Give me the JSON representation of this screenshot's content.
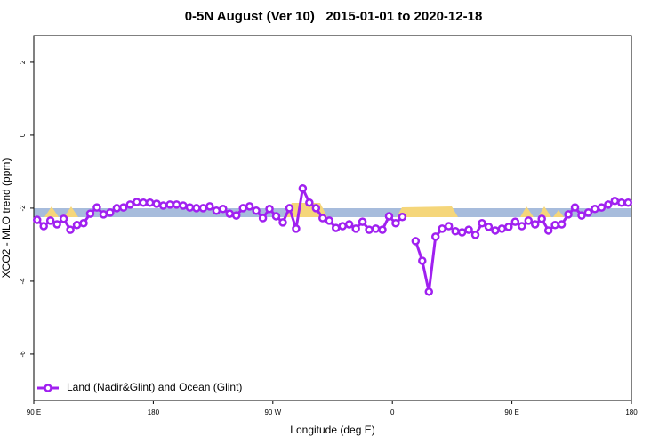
{
  "chart_data": {
    "type": "line",
    "title": "0-5N August (Ver 10)   2015-01-01 to 2020-12-18",
    "xlabel": "Longitude (deg E)",
    "ylabel": "XCO2 - MLO trend (ppm)",
    "xlim": [
      90,
      540
    ],
    "ylim": [
      -7.27,
      2.73
    ],
    "xticks": [
      {
        "value": 90,
        "label": "90 E"
      },
      {
        "value": 180,
        "label": "180"
      },
      {
        "value": 270,
        "label": "90 W"
      },
      {
        "value": 360,
        "label": "0"
      },
      {
        "value": 450,
        "label": "90 E"
      },
      {
        "value": 540,
        "label": "180"
      }
    ],
    "yticks": [
      2,
      0,
      -2,
      -4,
      -6
    ],
    "legend": "bottom-left",
    "x": [
      92.5,
      97.5,
      102.5,
      107.5,
      112.5,
      117.5,
      122.5,
      127.5,
      132.5,
      137.5,
      142.5,
      147.5,
      152.5,
      157.5,
      162.5,
      167.5,
      172.5,
      177.5,
      182.5,
      187.5,
      192.5,
      197.5,
      202.5,
      207.5,
      212.5,
      217.5,
      222.5,
      227.5,
      232.5,
      237.5,
      242.5,
      247.5,
      252.5,
      257.5,
      262.5,
      267.5,
      272.5,
      277.5,
      282.5,
      287.5,
      292.5,
      297.5,
      302.5,
      307.5,
      312.5,
      317.5,
      322.5,
      327.5,
      332.5,
      337.5,
      342.5,
      347.5,
      352.5,
      357.5,
      362.5,
      367.5,
      372.5,
      377.5,
      382.5,
      387.5,
      392.5,
      397.5,
      402.5,
      407.5,
      412.5,
      417.5,
      422.5,
      427.5,
      432.5,
      437.5,
      442.5,
      447.5,
      452.5,
      457.5,
      462.5,
      467.5,
      472.5,
      477.5,
      482.5,
      487.5,
      492.5,
      497.5,
      502.5,
      507.5,
      512.5,
      517.5,
      522.5,
      527.5,
      532.5,
      537.5
    ],
    "series": [
      {
        "name": "Land (Nadir&Glint) and Ocean (Glint)",
        "color": "#a020f0",
        "values": [
          -2.32,
          -2.49,
          -2.34,
          -2.44,
          -2.29,
          -2.59,
          -2.46,
          -2.41,
          -2.15,
          -1.98,
          -2.17,
          -2.12,
          -2.0,
          -1.98,
          -1.9,
          -1.83,
          -1.85,
          -1.85,
          -1.88,
          -1.93,
          -1.9,
          -1.9,
          -1.93,
          -1.98,
          -2.0,
          -2.0,
          -1.95,
          -2.07,
          -2.02,
          -2.15,
          -2.2,
          -2.0,
          -1.95,
          -2.07,
          -2.27,
          -2.02,
          -2.22,
          -2.39,
          -2.0,
          -2.56,
          -1.46,
          -1.85,
          -2.0,
          -2.27,
          -2.34,
          -2.54,
          -2.49,
          -2.44,
          -2.56,
          -2.37,
          -2.59,
          -2.56,
          -2.59,
          -2.22,
          -2.41,
          -2.24,
          null,
          -2.9,
          -3.44,
          -4.29,
          -2.78,
          -2.56,
          -2.49,
          -2.63,
          -2.66,
          -2.59,
          -2.73,
          -2.41,
          -2.51,
          -2.61,
          -2.56,
          -2.51,
          -2.37,
          -2.49,
          -2.34,
          -2.44,
          -2.29,
          -2.61,
          -2.46,
          -2.44,
          -2.17,
          -1.98,
          -2.2,
          -2.12,
          -2.02,
          -1.98,
          -1.9,
          -1.8,
          -1.85,
          -1.85
        ]
      }
    ]
  }
}
